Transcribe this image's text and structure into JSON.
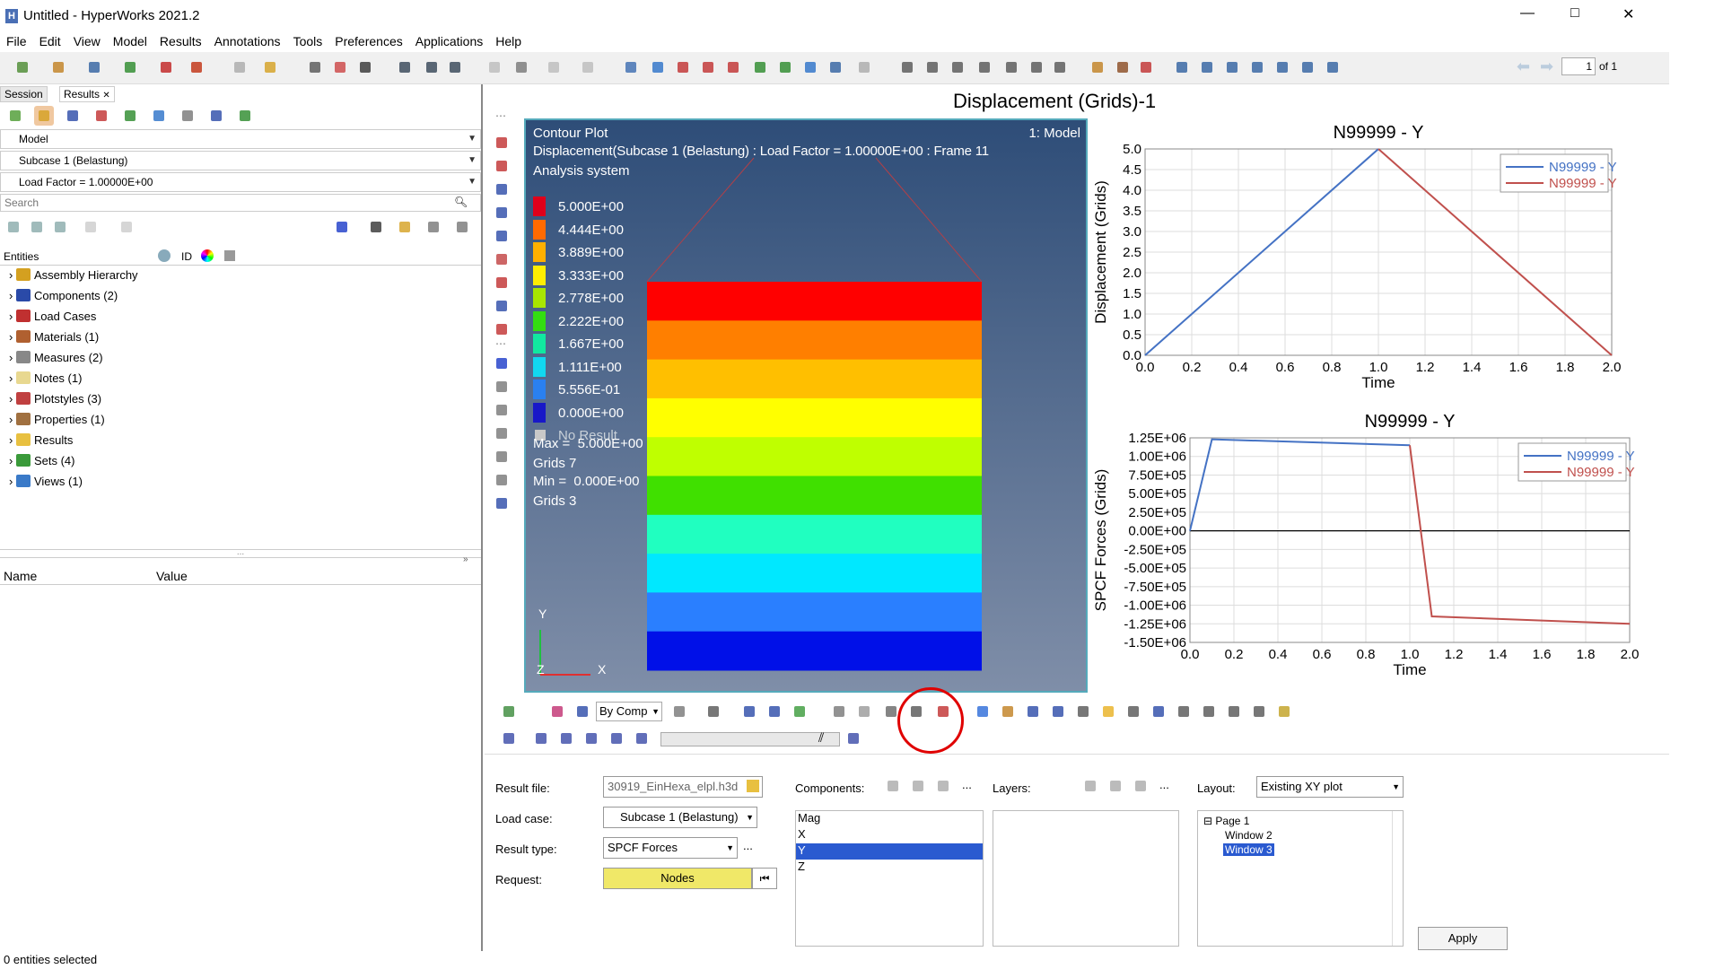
{
  "titlebar": {
    "title": "Untitled - HyperWorks 2021.2",
    "minimize": "—",
    "maximize": "□",
    "close": "✕"
  },
  "menu": [
    "File",
    "Edit",
    "View",
    "Model",
    "Results",
    "Annotations",
    "Tools",
    "Preferences",
    "Applications",
    "Help"
  ],
  "page_nav": {
    "value": "1",
    "of": "of 1"
  },
  "left": {
    "tabs": [
      "Session",
      "Results"
    ],
    "tab_close": "✕",
    "model_dropdown": "Model",
    "subcase_dropdown": "Subcase 1 (Belastung)",
    "loadfactor_dropdown": "Load Factor = 1.00000E+00",
    "search_placeholder": "Search",
    "entities_header": "Entities",
    "id_col": "ID",
    "tree": [
      "Assembly Hierarchy",
      "Components (2)",
      "Load Cases",
      "Materials (1)",
      "Measures (2)",
      "Notes (1)",
      "Plotstyles (3)",
      "Properties (1)",
      "Results",
      "Sets (4)",
      "Views (1)"
    ],
    "splitter": "...",
    "prop_name": "Name",
    "prop_value": "Value"
  },
  "window_title": "Displacement (Grids)-1",
  "contour": {
    "title": "Contour Plot",
    "model": "1: Model",
    "subtitle": "Displacement(Subcase 1 (Belastung) : Load Factor =  1.00000E+00 : Frame 11",
    "system": "Analysis system",
    "legend": [
      "5.000E+00",
      "4.444E+00",
      "3.889E+00",
      "3.333E+00",
      "2.778E+00",
      "2.222E+00",
      "1.667E+00",
      "1.111E+00",
      "5.556E-01",
      "0.000E+00"
    ],
    "legend_colors": [
      "#e0001a",
      "#ff6a00",
      "#ffb000",
      "#ffee00",
      "#a8e600",
      "#33dd11",
      "#11e8a0",
      "#11d8f0",
      "#2a80f0",
      "#1818c8"
    ],
    "no_result": "No Result",
    "max": "Max =  5.000E+00",
    "max_grid": "Grids 7",
    "min": "Min =  0.000E+00",
    "min_grid": "Grids 3",
    "band_colors": [
      "#ff0000",
      "#ff7f00",
      "#ffbf00",
      "#ffff00",
      "#bfff00",
      "#40e000",
      "#20ffc0",
      "#00e8ff",
      "#2a7fff",
      "#0010e8"
    ],
    "axis_y": "Y",
    "axis_x": "X",
    "axis_z": "Z"
  },
  "chart_data": [
    {
      "type": "line",
      "title": "N99999 - Y",
      "xlabel": "Time",
      "ylabel": "Displacement (Grids)",
      "xlim": [
        0,
        2
      ],
      "ylim": [
        0,
        5
      ],
      "xticks": [
        "0.0",
        "0.2",
        "0.4",
        "0.6",
        "0.8",
        "1.0",
        "1.2",
        "1.4",
        "1.6",
        "1.8",
        "2.0"
      ],
      "yticks": [
        "0.0",
        "0.5",
        "1.0",
        "1.5",
        "2.0",
        "2.5",
        "3.0",
        "3.5",
        "4.0",
        "4.5",
        "5.0"
      ],
      "legend_position": "top-right",
      "series": [
        {
          "name": "N99999 - Y",
          "color": "#4472c4",
          "x": [
            0,
            1
          ],
          "y": [
            0,
            5
          ]
        },
        {
          "name": "N99999 - Y",
          "color": "#c0504d",
          "x": [
            1,
            2
          ],
          "y": [
            5,
            0
          ]
        }
      ]
    },
    {
      "type": "line",
      "title": "N99999 - Y",
      "xlabel": "Time",
      "ylabel": "SPCF Forces (Grids)",
      "xlim": [
        0,
        2
      ],
      "ylim": [
        -1500000,
        1250000
      ],
      "xticks": [
        "0.0",
        "0.2",
        "0.4",
        "0.6",
        "0.8",
        "1.0",
        "1.2",
        "1.4",
        "1.6",
        "1.8",
        "2.0"
      ],
      "yticks": [
        "1.25E+06",
        "1.00E+06",
        "7.50E+05",
        "5.00E+05",
        "2.50E+05",
        "0.00E+00",
        "-2.50E+05",
        "-5.00E+05",
        "-7.50E+05",
        "-1.00E+06",
        "-1.25E+06",
        "-1.50E+06"
      ],
      "legend_position": "top-right",
      "series": [
        {
          "name": "N99999 - Y",
          "color": "#4472c4",
          "x": [
            0,
            0.1,
            1.0
          ],
          "y": [
            0,
            1230000,
            1150000
          ]
        },
        {
          "name": "N99999 - Y",
          "color": "#c0504d",
          "x": [
            1.0,
            1.1,
            2.0
          ],
          "y": [
            1150000,
            -1150000,
            -1250000
          ]
        }
      ]
    }
  ],
  "anim_toolbar": {
    "by_comp": "By Comp"
  },
  "bottom": {
    "result_file_label": "Result file:",
    "result_file": "30919_EinHexa_elpl.h3d",
    "load_case_label": "Load case:",
    "load_case": "Subcase 1 (Belastung)",
    "result_type_label": "Result type:",
    "result_type": "SPCF Forces",
    "request_label": "Request:",
    "request": "Nodes",
    "components_label": "Components:",
    "components": [
      "Mag",
      "X",
      "Y",
      "Z"
    ],
    "layers_label": "Layers:",
    "layout_label": "Layout:",
    "layout": "Existing XY plot",
    "tree": [
      "Page 1",
      "Window 2",
      "Window 3"
    ],
    "apply": "Apply",
    "more": "...",
    "last_icon": "⏮"
  },
  "status": "0 entities selected"
}
